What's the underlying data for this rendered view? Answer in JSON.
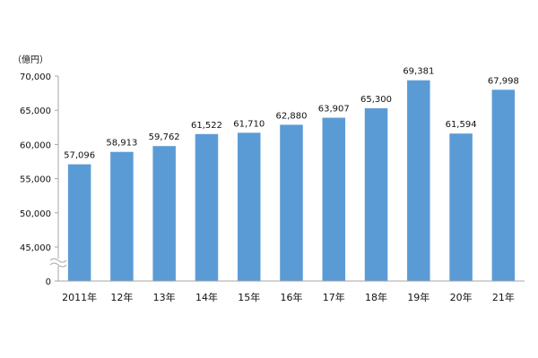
{
  "chart_data": {
    "type": "bar",
    "unit_label": "（億円）",
    "categories": [
      "2011年",
      "12年",
      "13年",
      "14年",
      "15年",
      "16年",
      "17年",
      "18年",
      "19年",
      "20年",
      "21年"
    ],
    "values": [
      57096,
      58913,
      59762,
      61522,
      61710,
      62880,
      63907,
      65300,
      69381,
      61594,
      67998
    ],
    "value_labels": [
      "57,096",
      "58,913",
      "59,762",
      "61,522",
      "61,710",
      "62,880",
      "63,907",
      "65,300",
      "69,381",
      "61,594",
      "67,998"
    ],
    "y_ticks": [
      {
        "value": 0,
        "label": "0"
      },
      {
        "value": 45000,
        "label": "45,000"
      },
      {
        "value": 50000,
        "label": "50,000"
      },
      {
        "value": 55000,
        "label": "55,000"
      },
      {
        "value": 60000,
        "label": "60,000"
      },
      {
        "value": 65000,
        "label": "65,000"
      },
      {
        "value": 70000,
        "label": "70,000"
      }
    ],
    "ylim": [
      0,
      70000
    ],
    "axis_break": {
      "between": [
        0,
        45000
      ]
    },
    "grid": false,
    "legend": "none",
    "bar_color": "#5B9BD5",
    "axis_color": "#A6A6A6"
  }
}
